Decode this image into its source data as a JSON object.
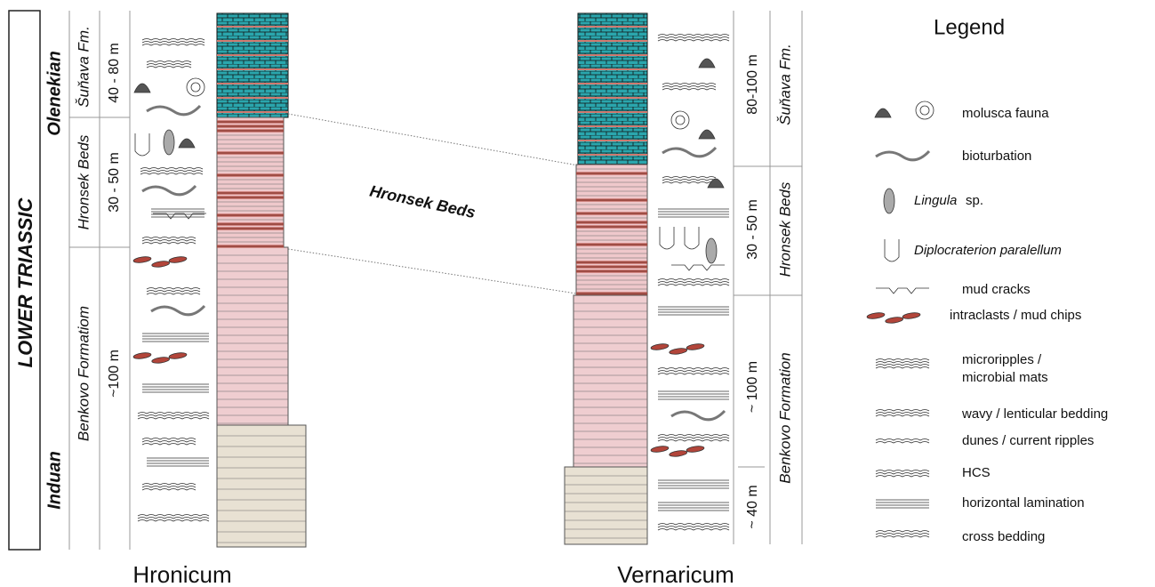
{
  "header": {
    "era": "LOWER TRIASSIC",
    "stages": [
      "Olenekian",
      "Induan"
    ]
  },
  "sections": [
    {
      "name": "Hronicum",
      "units": [
        "Šuňava Fm.",
        "Hronsek Beds",
        "Benkovo Formatiom"
      ],
      "thicknesses": [
        "40 - 80 m",
        "30 - 50 m",
        "~100 m"
      ]
    },
    {
      "name": "Vernaricum",
      "units": [
        "Šuňava Fm.",
        "Hronsek Beds",
        "Benkovo Formation"
      ],
      "thicknesses": [
        "80-100 m",
        "30 - 50 m",
        "~ 100 m",
        "~ 40 m"
      ]
    }
  ],
  "correlation": {
    "label": "Hronsek Beds"
  },
  "legend": {
    "title": "Legend",
    "items": [
      "molusca fauna",
      "bioturbation",
      {
        "italic": "Lingula",
        "text": "sp."
      },
      {
        "italic": "Diplocraterion paralellum"
      },
      "mud cracks",
      "intraclasts / mud chips",
      [
        "microripples /",
        "microbial mats"
      ],
      "wavy / lenticular bedding",
      "dunes / current ripples",
      "HCS",
      "horizontal lamination",
      "cross bedding"
    ]
  }
}
